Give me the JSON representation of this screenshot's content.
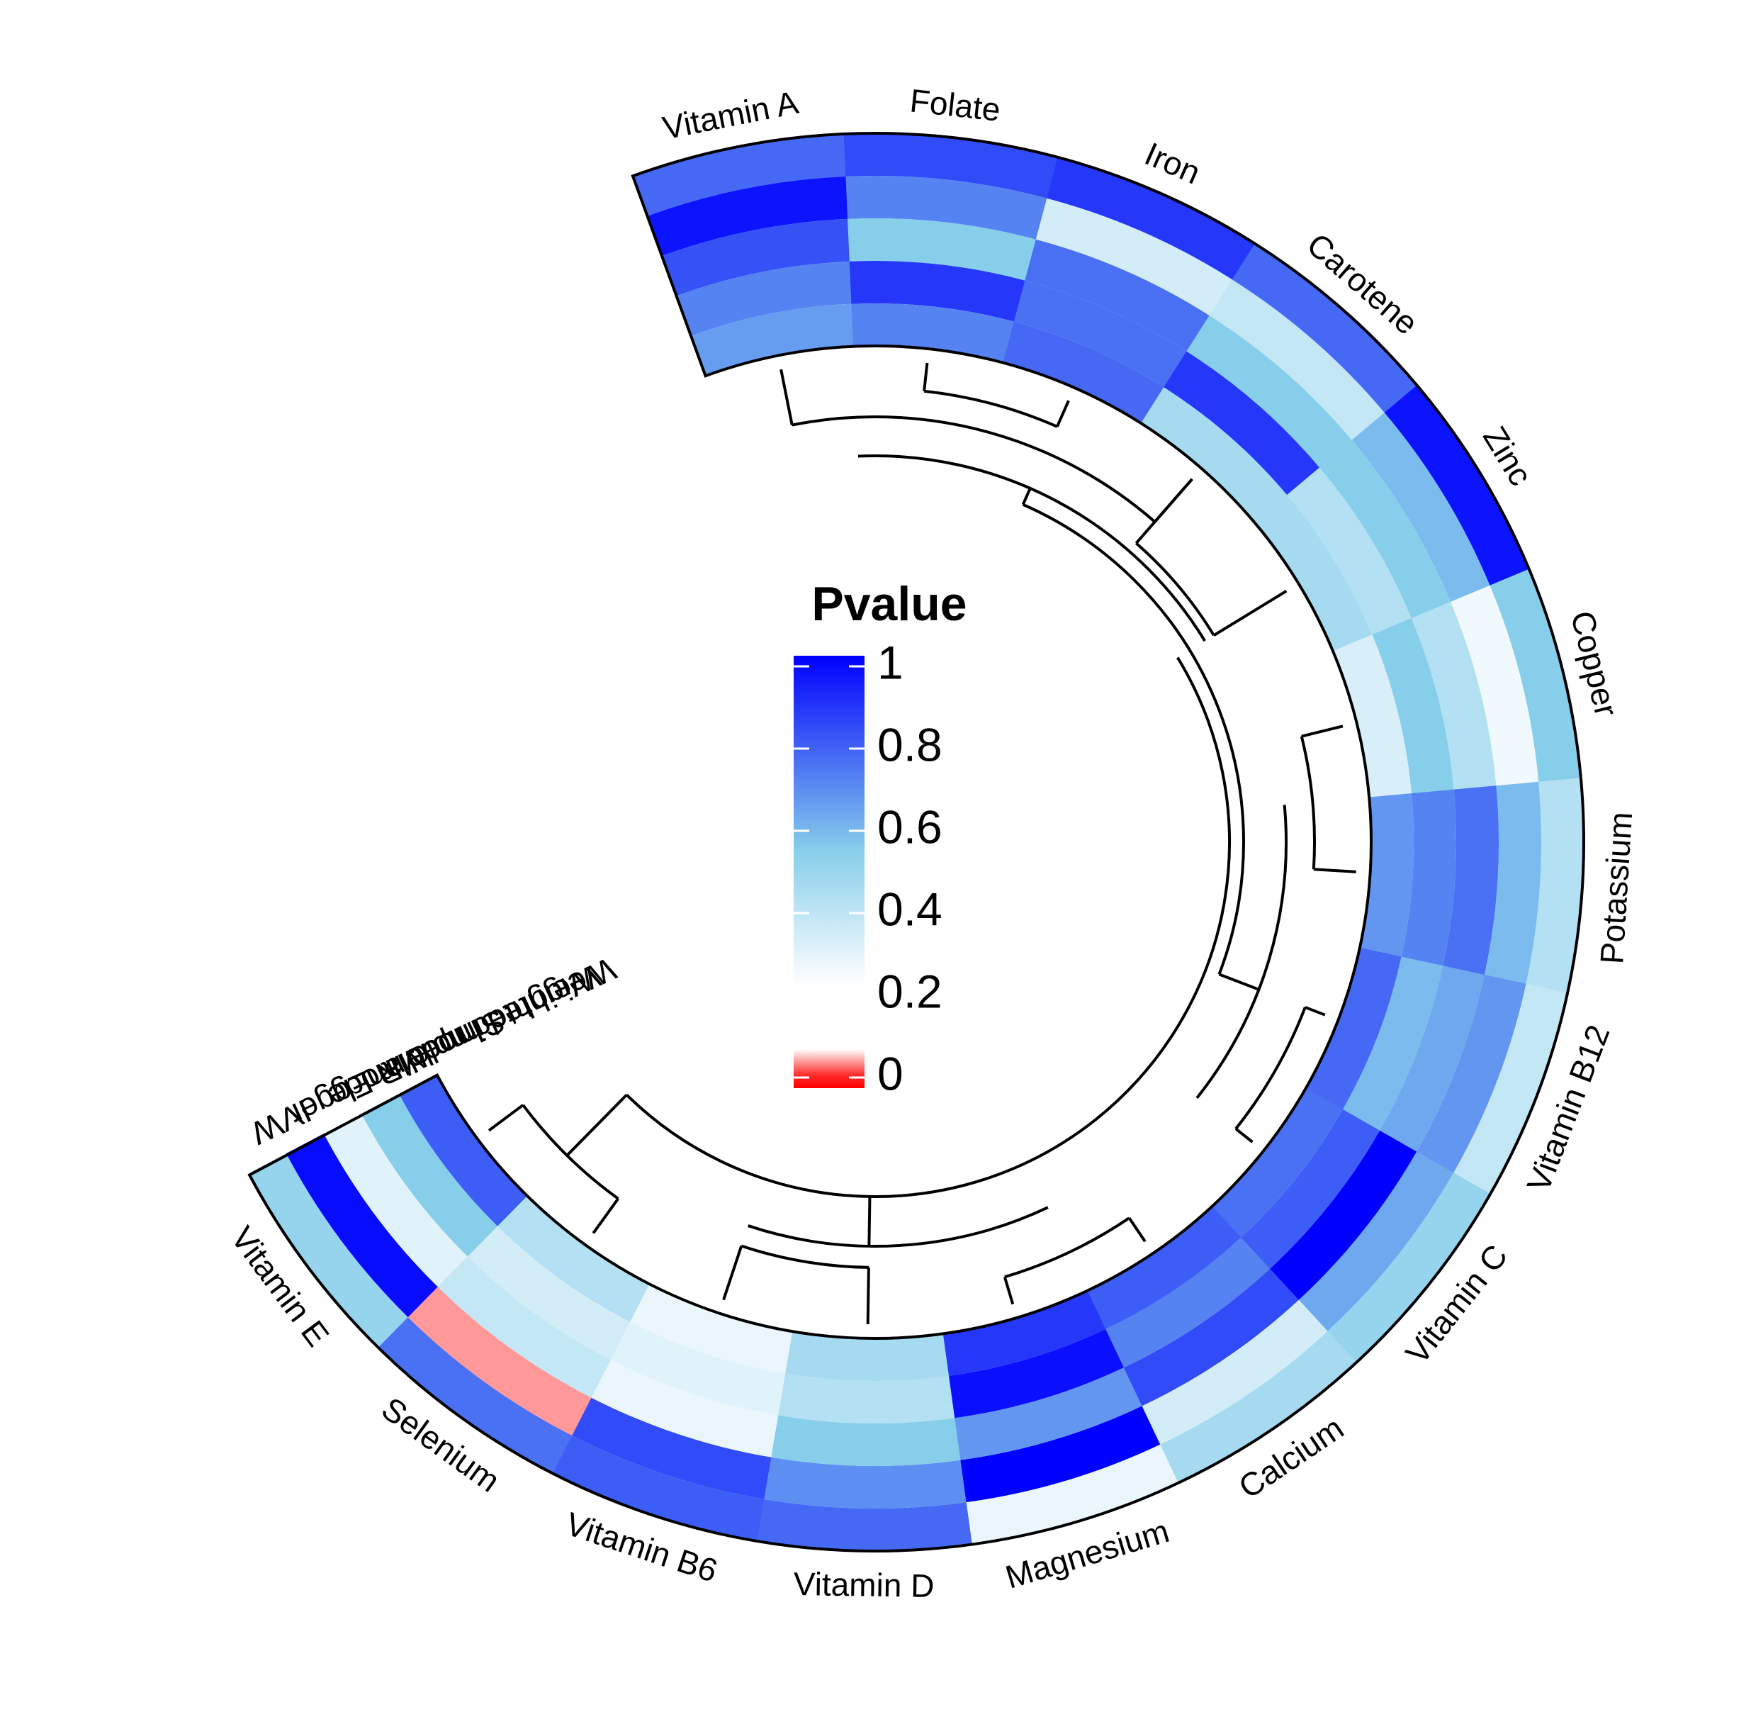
{
  "chart_data": {
    "type": "heatmap",
    "layout": "circular",
    "legend": {
      "title": "Pvalue",
      "ticks": [
        "1",
        "0.8",
        "0.6",
        "0.4",
        "0.2",
        "0"
      ],
      "tick_values": [
        1,
        0.8,
        0.6,
        0.4,
        0.2,
        0
      ],
      "colors": {
        "low": "#ff0000",
        "near_zero": "#ffffff",
        "mid": "#87ceeb",
        "high": "#0000ff"
      }
    },
    "tracks_outer_to_inner": [
      "IVW",
      "MR Egger",
      "Simple mode",
      "Weighted median",
      "Weighted mode"
    ],
    "categories_clockwise": [
      "Vitamin A",
      "Folate",
      "Iron",
      "Carotene",
      "Zinc",
      "Copper",
      "Potassium",
      "Vitamin B12",
      "Vitamin C",
      "Calcium",
      "Magnesium",
      "Vitamin D",
      "Vitamin B6",
      "Selenium",
      "Vitamin E"
    ],
    "values": {
      "Vitamin E": [
        0.4,
        0.97,
        0.15,
        0.45,
        0.75
      ],
      "Selenium": [
        0.7,
        0.03,
        0.25,
        0.2,
        0.3
      ],
      "Vitamin B6": [
        0.75,
        0.8,
        0.12,
        0.15,
        0.12
      ],
      "Vitamin D": [
        0.72,
        0.62,
        0.45,
        0.3,
        0.35
      ],
      "Magnesium": [
        0.12,
        1.0,
        0.6,
        0.96,
        0.85
      ],
      "Calcium": [
        0.35,
        0.2,
        0.8,
        0.65,
        0.75
      ],
      "Vitamin C": [
        0.4,
        0.55,
        1.0,
        0.75,
        0.7
      ],
      "Vitamin B12": [
        0.25,
        0.6,
        0.55,
        0.5,
        0.72
      ],
      "Potassium": [
        0.3,
        0.5,
        0.7,
        0.65,
        0.6
      ],
      "Copper": [
        0.45,
        0.1,
        0.3,
        0.45,
        0.18
      ],
      "Zinc": [
        0.95,
        0.5,
        0.45,
        0.3,
        0.35
      ],
      "Carotene": [
        0.72,
        0.25,
        0.45,
        0.85,
        0.35
      ],
      "Iron": [
        0.85,
        0.2,
        0.7,
        0.7,
        0.72
      ],
      "Folate": [
        0.8,
        0.65,
        0.45,
        0.85,
        0.65
      ],
      "Vitamin A": [
        0.72,
        0.95,
        0.78,
        0.65,
        0.58
      ]
    }
  }
}
